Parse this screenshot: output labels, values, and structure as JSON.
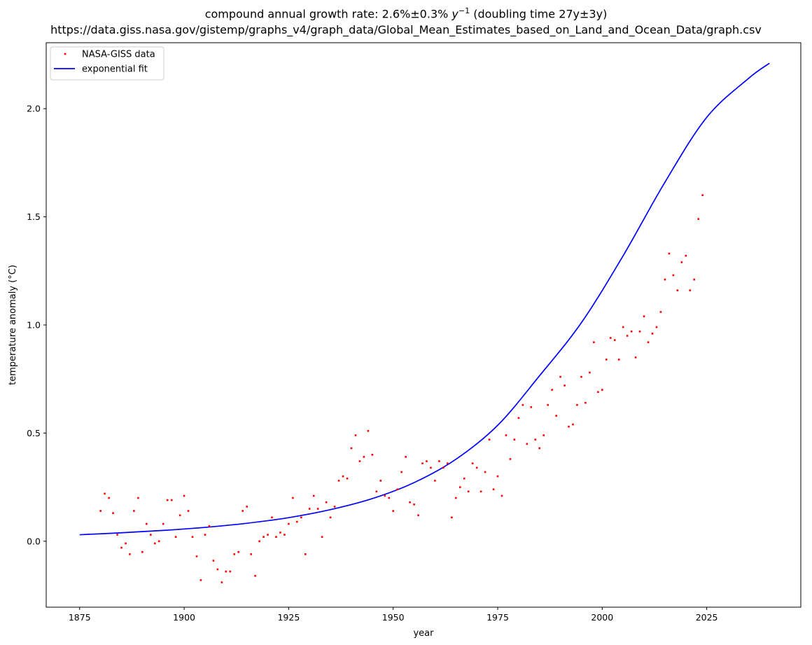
{
  "chart_data": {
    "type": "scatter",
    "title_prefix": "compound annual growth rate: 2.6%±0.3% ",
    "title_var": "y",
    "title_exp": "−1",
    "title_suffix": " (doubling time 27y±3y)",
    "subtitle": "https://data.giss.nasa.gov/gistemp/graphs_v4/graph_data/Global_Mean_Estimates_based_on_Land_and_Ocean_Data/graph.csv",
    "xlabel": "year",
    "ylabel": "temperature anomaly (°C)",
    "xlim": [
      1867,
      2047.5
    ],
    "ylim": [
      -0.305,
      2.305
    ],
    "xticks": [
      1875,
      1900,
      1925,
      1950,
      1975,
      2000,
      2025
    ],
    "xtick_labels": [
      "1875",
      "1900",
      "1925",
      "1950",
      "1975",
      "2000",
      "2025"
    ],
    "yticks": [
      0.0,
      0.5,
      1.0,
      1.5,
      2.0
    ],
    "ytick_labels": [
      "0.0",
      "0.5",
      "1.0",
      "1.5",
      "2.0"
    ],
    "legend": {
      "position": "top-left",
      "entries": [
        "NASA-GISS data",
        "exponential fit"
      ]
    },
    "colors": {
      "data": "#ff0000",
      "fit": "#0000ff"
    },
    "series": [
      {
        "name": "NASA-GISS data",
        "kind": "points",
        "x": [
          1880,
          1881,
          1882,
          1883,
          1884,
          1885,
          1886,
          1887,
          1888,
          1889,
          1890,
          1891,
          1892,
          1893,
          1894,
          1895,
          1896,
          1897,
          1898,
          1899,
          1900,
          1901,
          1902,
          1903,
          1904,
          1905,
          1906,
          1907,
          1908,
          1909,
          1910,
          1911,
          1912,
          1913,
          1914,
          1915,
          1916,
          1917,
          1918,
          1919,
          1920,
          1921,
          1922,
          1923,
          1924,
          1925,
          1926,
          1927,
          1928,
          1929,
          1930,
          1931,
          1932,
          1933,
          1934,
          1935,
          1936,
          1937,
          1938,
          1939,
          1940,
          1941,
          1942,
          1943,
          1944,
          1945,
          1946,
          1947,
          1948,
          1949,
          1950,
          1951,
          1952,
          1953,
          1954,
          1955,
          1956,
          1957,
          1958,
          1959,
          1960,
          1961,
          1962,
          1963,
          1964,
          1965,
          1966,
          1967,
          1968,
          1969,
          1970,
          1971,
          1972,
          1973,
          1974,
          1975,
          1976,
          1977,
          1978,
          1979,
          1980,
          1981,
          1982,
          1983,
          1984,
          1985,
          1986,
          1987,
          1988,
          1989,
          1990,
          1991,
          1992,
          1993,
          1994,
          1995,
          1996,
          1997,
          1998,
          1999,
          2000,
          2001,
          2002,
          2003,
          2004,
          2005,
          2006,
          2007,
          2008,
          2009,
          2010,
          2011,
          2012,
          2013,
          2014,
          2015,
          2016,
          2017,
          2018,
          2019,
          2020,
          2021,
          2022,
          2023,
          2024
        ],
        "y": [
          0.14,
          0.22,
          0.2,
          0.13,
          0.03,
          -0.03,
          -0.01,
          -0.06,
          0.14,
          0.2,
          -0.05,
          0.08,
          0.03,
          -0.01,
          0.0,
          0.08,
          0.19,
          0.19,
          0.02,
          0.12,
          0.21,
          0.14,
          0.02,
          -0.07,
          -0.18,
          0.03,
          0.07,
          -0.09,
          -0.13,
          -0.19,
          -0.14,
          -0.14,
          -0.06,
          -0.05,
          0.14,
          0.16,
          -0.06,
          -0.16,
          0.0,
          0.02,
          0.03,
          0.11,
          0.02,
          0.04,
          0.03,
          0.08,
          0.2,
          0.09,
          0.11,
          -0.06,
          0.15,
          0.21,
          0.15,
          0.02,
          0.18,
          0.11,
          0.16,
          0.28,
          0.3,
          0.29,
          0.43,
          0.49,
          0.37,
          0.39,
          0.51,
          0.4,
          0.23,
          0.28,
          0.21,
          0.2,
          0.14,
          0.24,
          0.32,
          0.39,
          0.18,
          0.17,
          0.12,
          0.36,
          0.37,
          0.34,
          0.28,
          0.37,
          0.34,
          0.36,
          0.11,
          0.2,
          0.25,
          0.29,
          0.23,
          0.36,
          0.34,
          0.23,
          0.32,
          0.47,
          0.24,
          0.3,
          0.21,
          0.49,
          0.38,
          0.47,
          0.57,
          0.63,
          0.45,
          0.62,
          0.47,
          0.43,
          0.49,
          0.63,
          0.7,
          0.58,
          0.76,
          0.72,
          0.53,
          0.54,
          0.63,
          0.76,
          0.64,
          0.78,
          0.92,
          0.69,
          0.7,
          0.84,
          0.94,
          0.93,
          0.84,
          0.99,
          0.95,
          0.97,
          0.85,
          0.97,
          1.04,
          0.92,
          0.96,
          0.99,
          1.06,
          1.21,
          1.33,
          1.23,
          1.16,
          1.29,
          1.32,
          1.16,
          1.21,
          1.49,
          1.6
        ]
      },
      {
        "name": "exponential fit",
        "kind": "line",
        "x": [
          1875,
          1885,
          1895,
          1905,
          1915,
          1925,
          1935,
          1945,
          1955,
          1965,
          1975,
          1985,
          1995,
          2005,
          2015,
          2025,
          2035,
          2040
        ],
        "y": [
          0.03,
          0.039,
          0.05,
          0.064,
          0.083,
          0.109,
          0.146,
          0.197,
          0.271,
          0.379,
          0.536,
          0.765,
          1.01,
          1.32,
          1.66,
          1.96,
          2.14,
          2.21
        ]
      }
    ]
  }
}
